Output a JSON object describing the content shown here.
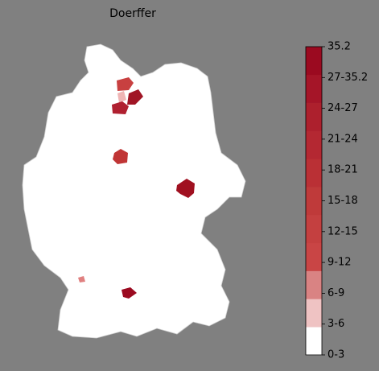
{
  "title": "Doerffer",
  "colorbar": {
    "labels": [
      "0-3",
      "3-6",
      "6-9",
      "9-12",
      "12-15",
      "15-18",
      "18-21",
      "21-24",
      "24-27",
      "27-35.2",
      "35.2"
    ],
    "colors": [
      "#ffffff",
      "#efc3c3",
      "#d98383",
      "#c94545",
      "#c44040",
      "#bf3a3a",
      "#ba3035",
      "#b42832",
      "#ad202d",
      "#a51528",
      "#9b0a20"
    ]
  }
}
